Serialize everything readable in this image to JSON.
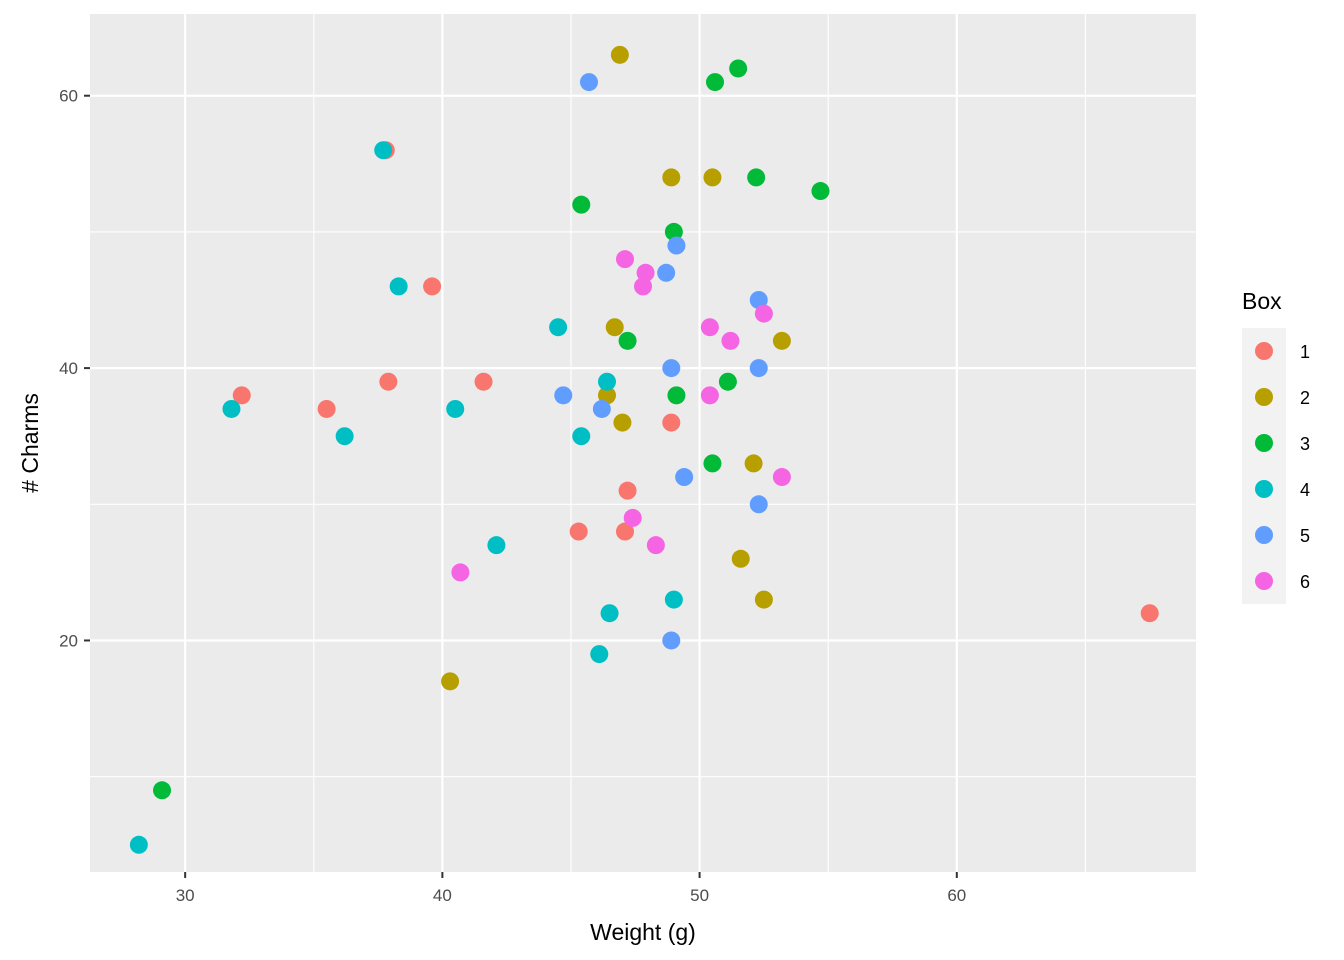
{
  "chart_data": {
    "type": "scatter",
    "title": "",
    "xlabel": "Weight (g)",
    "ylabel": "# Charms",
    "xlim": [
      26.3,
      69.3
    ],
    "ylim": [
      3.0,
      66.0
    ],
    "x_ticks": [
      30,
      40,
      50,
      60
    ],
    "y_ticks": [
      20,
      40,
      60
    ],
    "grid": true,
    "legend": {
      "title": "Box",
      "position": "right"
    },
    "series": [
      {
        "name": "1",
        "color": "#F8766D",
        "points": [
          [
            67.5,
            22
          ],
          [
            37.8,
            56
          ],
          [
            39.6,
            46
          ],
          [
            32.2,
            38
          ],
          [
            35.5,
            37
          ],
          [
            37.9,
            39
          ],
          [
            41.6,
            39
          ],
          [
            48.9,
            36
          ],
          [
            47.2,
            31
          ],
          [
            45.3,
            28
          ],
          [
            47.1,
            28
          ]
        ]
      },
      {
        "name": "2",
        "color": "#B79F00",
        "points": [
          [
            46.9,
            63
          ],
          [
            48.9,
            54
          ],
          [
            50.5,
            54
          ],
          [
            46.7,
            43
          ],
          [
            53.2,
            42
          ],
          [
            46.4,
            38
          ],
          [
            47.0,
            36
          ],
          [
            52.1,
            33
          ],
          [
            51.6,
            26
          ],
          [
            52.5,
            23
          ],
          [
            40.3,
            17
          ]
        ]
      },
      {
        "name": "3",
        "color": "#00BA38",
        "points": [
          [
            51.5,
            62
          ],
          [
            50.6,
            61
          ],
          [
            52.2,
            54
          ],
          [
            54.7,
            53
          ],
          [
            45.4,
            52
          ],
          [
            49.0,
            50
          ],
          [
            47.2,
            42
          ],
          [
            51.1,
            39
          ],
          [
            49.1,
            38
          ],
          [
            50.5,
            33
          ],
          [
            29.1,
            9
          ]
        ]
      },
      {
        "name": "4",
        "color": "#00BFC4",
        "points": [
          [
            37.7,
            56
          ],
          [
            38.3,
            46
          ],
          [
            44.5,
            43
          ],
          [
            46.4,
            39
          ],
          [
            31.8,
            37
          ],
          [
            40.5,
            37
          ],
          [
            36.2,
            35
          ],
          [
            45.4,
            35
          ],
          [
            42.1,
            27
          ],
          [
            46.5,
            22
          ],
          [
            49.0,
            23
          ],
          [
            46.1,
            19
          ],
          [
            28.2,
            5
          ]
        ]
      },
      {
        "name": "5",
        "color": "#619CFF",
        "points": [
          [
            45.7,
            61
          ],
          [
            49.1,
            49
          ],
          [
            48.7,
            47
          ],
          [
            52.3,
            45
          ],
          [
            48.9,
            40
          ],
          [
            52.3,
            40
          ],
          [
            44.7,
            38
          ],
          [
            46.2,
            37
          ],
          [
            49.4,
            32
          ],
          [
            52.3,
            30
          ],
          [
            48.9,
            20
          ]
        ]
      },
      {
        "name": "6",
        "color": "#F564E3",
        "points": [
          [
            47.1,
            48
          ],
          [
            47.9,
            47
          ],
          [
            47.8,
            46
          ],
          [
            52.5,
            44
          ],
          [
            50.4,
            43
          ],
          [
            51.2,
            42
          ],
          [
            50.4,
            38
          ],
          [
            53.2,
            32
          ],
          [
            47.4,
            29
          ],
          [
            48.3,
            27
          ],
          [
            40.7,
            25
          ]
        ]
      }
    ]
  }
}
